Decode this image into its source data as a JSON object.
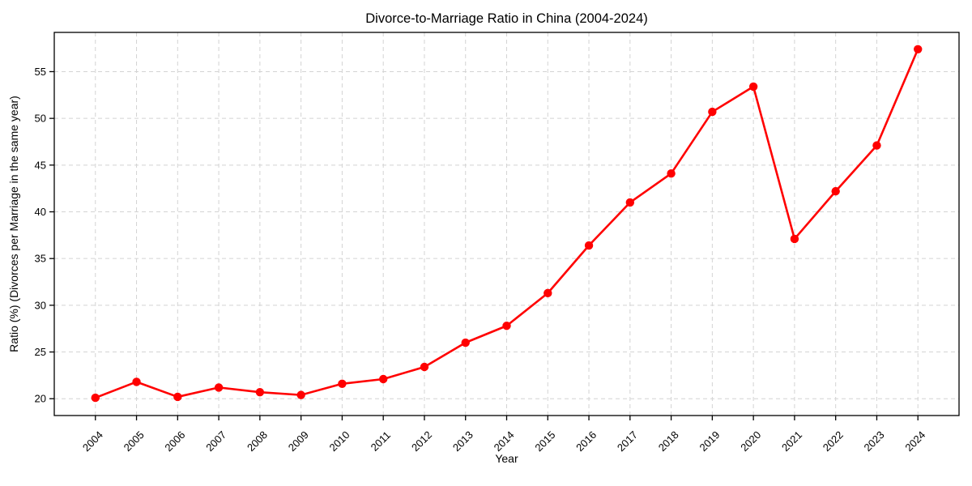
{
  "figure": {
    "background": "#ffffff"
  },
  "chart_data": {
    "type": "line",
    "title": "Divorce-to-Marriage Ratio in China (2004-2024)",
    "xlabel": "Year",
    "ylabel": "Ratio (%) (Divorces per Marriage in the same year)",
    "x": [
      2004,
      2005,
      2006,
      2007,
      2008,
      2009,
      2010,
      2011,
      2012,
      2013,
      2014,
      2015,
      2016,
      2017,
      2018,
      2019,
      2020,
      2021,
      2022,
      2023,
      2024
    ],
    "values": [
      20.1,
      21.8,
      20.2,
      21.2,
      20.7,
      20.4,
      21.6,
      22.1,
      23.4,
      26.0,
      27.8,
      31.3,
      36.4,
      41.0,
      44.1,
      50.7,
      53.4,
      37.1,
      42.2,
      47.1,
      57.4
    ],
    "yticks": [
      20,
      25,
      30,
      35,
      40,
      45,
      50,
      55
    ],
    "ylim": [
      18.2,
      59.2
    ],
    "grid": true,
    "grid_style": "dashed",
    "grid_color": "#d3d3d3",
    "line_color": "#ff0000",
    "marker": "circle",
    "legend": "none",
    "x_tick_rotation_deg": 45
  }
}
